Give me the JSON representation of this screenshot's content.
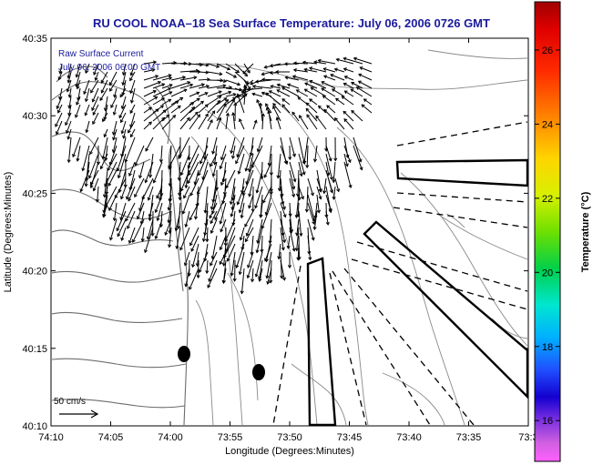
{
  "title": "RU COOL  NOAA–18  Sea Surface Temperature:  July 06, 2006 0726 GMT",
  "legend": {
    "line1": "Raw Surface Current",
    "line2": "July 06, 2006 06:00 GMT"
  },
  "scale_bar": {
    "label": "50 cm/s",
    "speed_cm_s": 50
  },
  "axes": {
    "xlabel": "Longitude (Degrees:Minutes)",
    "ylabel": "Latitude (Degrees:Minutes)",
    "x_ticks": [
      "74:10",
      "74:05",
      "74:00",
      "73:55",
      "73:50",
      "73:45",
      "73:40",
      "73:35",
      "73:3"
    ],
    "y_ticks": [
      "40:35",
      "40:30",
      "40:25",
      "40:20",
      "40:15",
      "40:10"
    ]
  },
  "colorbar": {
    "label": "Temperature (°C)",
    "ticks": [
      "26",
      "24",
      "22",
      "20",
      "18",
      "16"
    ],
    "range": [
      14.9,
      27.3
    ]
  },
  "colors": {
    "title": "#1a1a9c",
    "coast": "#7a7a7a",
    "vectors": "#000000"
  },
  "markers": {
    "count": 2,
    "description_note": "filled black ovals"
  }
}
